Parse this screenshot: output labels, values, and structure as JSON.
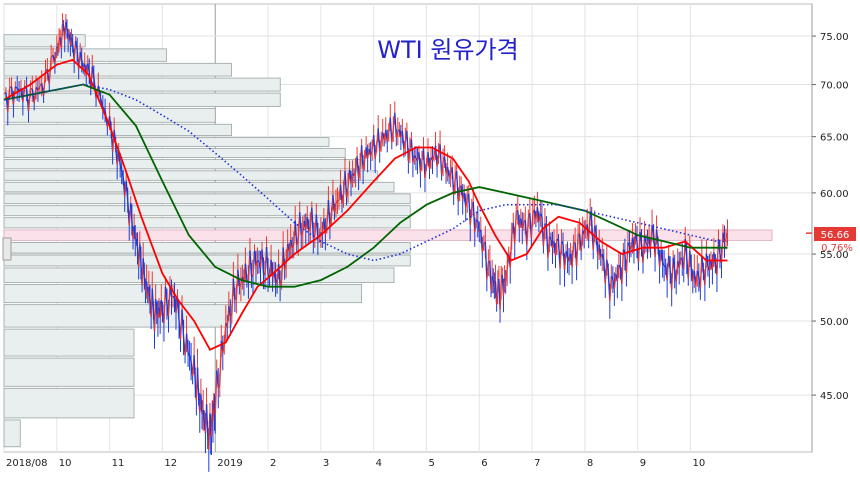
{
  "chart_data": {
    "type": "line",
    "title": "WTI 원유가격",
    "xlabel": "",
    "ylabel": "",
    "ylim": [
      41.5,
      78.5
    ],
    "y_scale": "log",
    "y_ticks": [
      45,
      50,
      55,
      60,
      65,
      70,
      75
    ],
    "y_tick_labels": [
      "45.00",
      "50.00",
      "55.00",
      "60.00",
      "65.00",
      "70.00",
      "75.00"
    ],
    "x_range": [
      0,
      15.3
    ],
    "x_ticks": [
      {
        "pos": 0.0,
        "label": "2018/08"
      },
      {
        "pos": 1.0,
        "label": "10"
      },
      {
        "pos": 2.0,
        "label": "11"
      },
      {
        "pos": 3.0,
        "label": "12"
      },
      {
        "pos": 4.0,
        "label": "2019"
      },
      {
        "pos": 5.0,
        "label": "2"
      },
      {
        "pos": 6.0,
        "label": "3"
      },
      {
        "pos": 7.0,
        "label": "4"
      },
      {
        "pos": 8.0,
        "label": "5"
      },
      {
        "pos": 9.0,
        "label": "6"
      },
      {
        "pos": 10.0,
        "label": "7"
      },
      {
        "pos": 11.0,
        "label": "8"
      },
      {
        "pos": 12.0,
        "label": "9"
      },
      {
        "pos": 13.0,
        "label": "10"
      }
    ],
    "grid": true,
    "last_price": "56.66",
    "last_change": "0.76%",
    "price_series": {
      "name": "",
      "x": [
        0,
        0.25,
        0.5,
        0.75,
        1.0,
        1.15,
        1.3,
        1.5,
        1.7,
        2.0,
        2.2,
        2.4,
        2.55,
        2.7,
        2.85,
        3.0,
        3.2,
        3.4,
        3.6,
        3.75,
        3.9,
        4.0,
        4.2,
        4.4,
        4.6,
        4.8,
        5.0,
        5.2,
        5.4,
        5.6,
        5.8,
        6.0,
        6.2,
        6.4,
        6.6,
        6.8,
        7.0,
        7.2,
        7.4,
        7.6,
        7.8,
        8.0,
        8.2,
        8.4,
        8.6,
        8.8,
        9.0,
        9.2,
        9.35,
        9.5,
        9.7,
        9.9,
        10.1,
        10.3,
        10.5,
        10.7,
        10.9,
        11.1,
        11.3,
        11.5,
        11.7,
        11.9,
        12.1,
        12.3,
        12.5,
        12.7,
        12.9,
        13.1,
        13.3,
        13.5,
        13.7
      ],
      "values": [
        68.5,
        69.5,
        68.8,
        70.0,
        73.5,
        76.0,
        74.0,
        72.0,
        70.5,
        66.0,
        62.5,
        58.0,
        55.0,
        52.5,
        50.5,
        50.8,
        52.0,
        49.0,
        46.5,
        44.0,
        42.5,
        44.5,
        49.5,
        52.5,
        53.5,
        54.5,
        54.0,
        53.0,
        55.5,
        57.0,
        57.5,
        56.5,
        58.5,
        60.0,
        61.5,
        63.0,
        64.0,
        65.0,
        66.0,
        64.5,
        63.0,
        62.5,
        63.5,
        62.0,
        60.5,
        59.0,
        57.0,
        53.5,
        52.0,
        53.0,
        58.0,
        57.0,
        58.5,
        56.0,
        55.5,
        54.5,
        56.0,
        57.5,
        55.0,
        52.5,
        54.0,
        56.0,
        55.5,
        56.5,
        54.0,
        53.5,
        55.0,
        53.0,
        54.0,
        54.5,
        56.7
      ]
    },
    "series": [
      {
        "name": "",
        "color": "#ff0000",
        "style": "solid",
        "x": [
          0,
          0.5,
          1.0,
          1.3,
          1.6,
          2.0,
          2.3,
          2.6,
          3.0,
          3.3,
          3.6,
          3.9,
          4.2,
          4.5,
          4.8,
          5.1,
          5.5,
          6.0,
          6.5,
          7.0,
          7.4,
          7.8,
          8.1,
          8.5,
          8.8,
          9.0,
          9.3,
          9.6,
          9.9,
          10.2,
          10.5,
          10.9,
          11.3,
          11.7,
          12.1,
          12.5,
          12.9,
          13.3,
          13.7
        ],
        "values": [
          68.5,
          70.0,
          72.0,
          72.5,
          71.0,
          66.0,
          62.0,
          58.0,
          53.5,
          51.5,
          50.0,
          48.0,
          48.5,
          50.5,
          52.5,
          53.5,
          55.0,
          56.5,
          58.5,
          61.0,
          63.0,
          64.0,
          64.0,
          63.0,
          61.0,
          59.0,
          56.5,
          54.5,
          55.0,
          57.0,
          58.0,
          57.5,
          56.0,
          55.0,
          55.5,
          55.5,
          56.0,
          54.5,
          54.5
        ]
      },
      {
        "name": "",
        "color": "#006400",
        "style": "solid",
        "x": [
          0,
          0.5,
          1.0,
          1.5,
          2.0,
          2.5,
          3.0,
          3.5,
          4.0,
          4.5,
          5.0,
          5.5,
          6.0,
          6.5,
          7.0,
          7.5,
          8.0,
          8.5,
          9.0,
          9.5,
          10.0,
          10.5,
          11.0,
          11.5,
          12.0,
          12.5,
          13.0,
          13.5,
          13.7
        ],
        "values": [
          68.5,
          69.0,
          69.5,
          70.0,
          69.0,
          66.0,
          61.0,
          56.5,
          54.0,
          53.0,
          52.5,
          52.5,
          53.0,
          54.0,
          55.5,
          57.5,
          59.0,
          60.0,
          60.5,
          60.0,
          59.5,
          59.0,
          58.5,
          57.5,
          56.5,
          56.0,
          55.5,
          55.5,
          55.5
        ]
      },
      {
        "name": "",
        "color": "#1f2fd8",
        "style": "dotted",
        "x": [
          0,
          0.5,
          1.0,
          1.5,
          2.0,
          2.5,
          3.0,
          3.5,
          4.0,
          4.5,
          5.0,
          5.5,
          6.0,
          6.5,
          7.0,
          7.5,
          8.0,
          8.5,
          9.0,
          9.5,
          10.0,
          10.5,
          11.0,
          11.5,
          12.0,
          12.5,
          13.0,
          13.5,
          13.7
        ],
        "values": [
          68.5,
          69.0,
          69.5,
          70.0,
          69.5,
          68.5,
          67.0,
          65.5,
          63.5,
          61.5,
          59.5,
          57.5,
          56.0,
          55.0,
          54.5,
          55.0,
          56.0,
          57.0,
          58.5,
          59.0,
          59.0,
          59.0,
          58.5,
          58.0,
          57.5,
          57.0,
          56.5,
          56.0,
          56.0
        ]
      }
    ],
    "volume_profile": {
      "price_bins": [
        42.5,
        44.5,
        46.5,
        48.5,
        50.5,
        52.0,
        53.5,
        54.5,
        55.5,
        56.5,
        57.5,
        58.5,
        59.5,
        60.5,
        61.5,
        62.5,
        63.5,
        64.5,
        65.5,
        67.0,
        68.5,
        70.0,
        71.5,
        73.0,
        74.5
      ],
      "values": [
        5,
        40,
        40,
        40,
        70,
        110,
        120,
        125,
        125,
        125,
        125,
        125,
        125,
        120,
        115,
        110,
        105,
        100,
        70,
        65,
        85,
        85,
        70,
        50,
        25
      ],
      "highlight_bin": 56.5
    }
  }
}
